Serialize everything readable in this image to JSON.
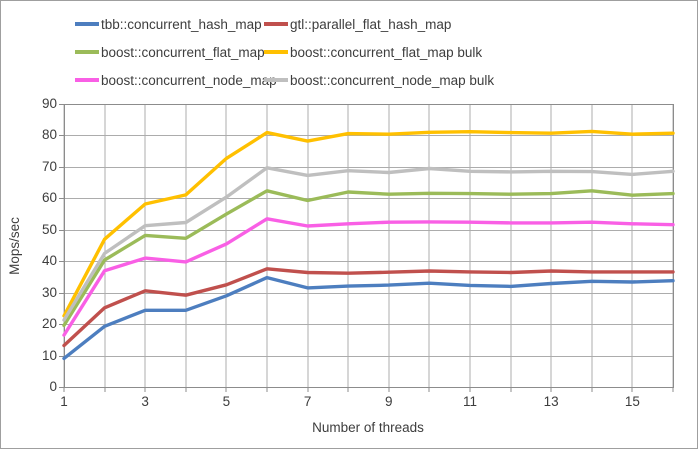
{
  "chart_data": {
    "type": "line",
    "title": "",
    "xlabel": "Number of threads",
    "ylabel": "Mops/sec",
    "x": [
      1,
      2,
      3,
      4,
      5,
      6,
      7,
      8,
      9,
      10,
      11,
      12,
      13,
      14,
      15,
      16
    ],
    "xlim": [
      1,
      16
    ],
    "ylim": [
      0,
      90
    ],
    "y_ticks": [
      0,
      10,
      20,
      30,
      40,
      50,
      60,
      70,
      80,
      90
    ],
    "x_tick_labels": [
      1,
      3,
      5,
      7,
      9,
      11,
      13,
      15
    ],
    "grid": "both-major",
    "legend_position": "top",
    "series": [
      {
        "name": "tbb::concurrent_hash_map",
        "color": "#4D7EBF",
        "values": [
          9.1,
          19.3,
          24.4,
          24.4,
          29.0,
          34.8,
          31.5,
          32.1,
          32.4,
          33.0,
          32.3,
          32.0,
          32.9,
          33.6,
          33.4,
          33.8
        ]
      },
      {
        "name": "gtl::parallel_flat_hash_map",
        "color": "#C0504D",
        "values": [
          13.2,
          25.2,
          30.6,
          29.2,
          32.5,
          37.6,
          36.4,
          36.2,
          36.5,
          36.9,
          36.6,
          36.4,
          36.9,
          36.6,
          36.6,
          36.6
        ]
      },
      {
        "name": "boost::concurrent_flat_map",
        "color": "#9BBB59",
        "values": [
          19.6,
          40.4,
          48.2,
          47.3,
          55.0,
          62.4,
          59.3,
          62.0,
          61.3,
          61.6,
          61.5,
          61.3,
          61.5,
          62.4,
          61.0,
          61.5
        ]
      },
      {
        "name": "boost::concurrent_flat_map bulk",
        "color": "#FFC000",
        "values": [
          22.6,
          47.0,
          58.2,
          61.1,
          72.7,
          80.9,
          78.2,
          80.6,
          80.4,
          81.0,
          81.2,
          80.9,
          80.7,
          81.3,
          80.4,
          80.7
        ]
      },
      {
        "name": "boost::concurrent_node_map",
        "color": "#F95FE5",
        "values": [
          16.5,
          37.0,
          41.0,
          39.8,
          45.5,
          53.5,
          51.2,
          51.9,
          52.4,
          52.5,
          52.4,
          52.2,
          52.2,
          52.4,
          51.9,
          51.6
        ]
      },
      {
        "name": "boost::concurrent_node_map bulk",
        "color": "#BFBFBF",
        "values": [
          21.3,
          42.5,
          51.3,
          52.3,
          60.4,
          69.7,
          67.3,
          68.8,
          68.2,
          69.5,
          68.6,
          68.4,
          68.6,
          68.5,
          67.6,
          68.6
        ]
      }
    ]
  },
  "colors": {
    "gridline": "#ACACAC",
    "plot_border": "#8C8C8C",
    "tick": "#8C8C8C",
    "text": "#3D3D3D",
    "page_border": "#9F9F9F",
    "background": "#FFFFFF"
  }
}
